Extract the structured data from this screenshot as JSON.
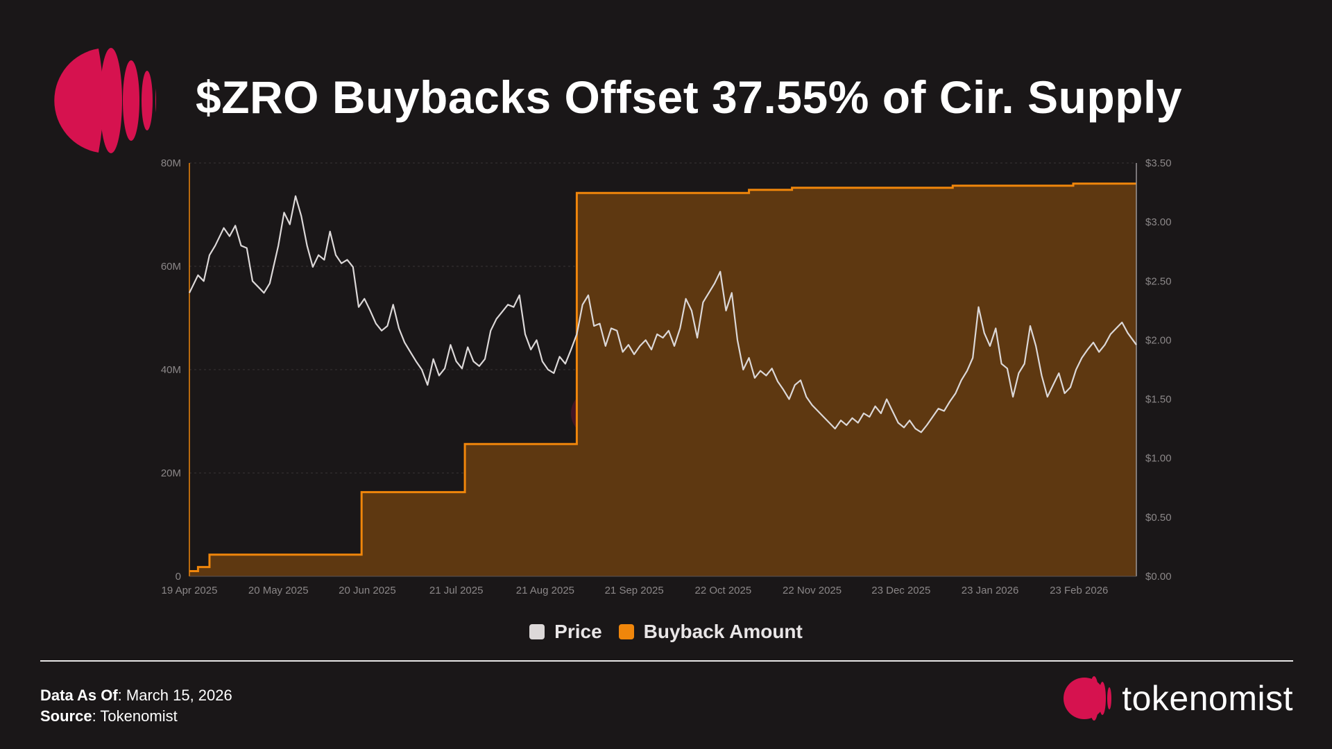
{
  "header": {
    "title": "$ZRO Buybacks Offset 37.55% of Cir. Supply"
  },
  "colors": {
    "background": "#1a1718",
    "brand": "#d6124f",
    "price_line": "#dcd8d8",
    "buyback_line": "#f0860b",
    "buyback_fill": "#5e3811"
  },
  "chart_data": {
    "type": "line",
    "title": "$ZRO Buybacks Offset 37.55% of Cir. Supply",
    "x_axis": {
      "start": "2025-04-19",
      "end": "2026-03-15",
      "tick_labels": [
        "19 Apr 2025",
        "20 May 2025",
        "20 Jun 2025",
        "21 Jul 2025",
        "21 Aug 2025",
        "21 Sep 2025",
        "22 Oct 2025",
        "22 Nov 2025",
        "23 Dec 2025",
        "23 Jan 2026",
        "23 Feb 2026"
      ],
      "tick_dates": [
        "2025-04-19",
        "2025-05-20",
        "2025-06-20",
        "2025-07-21",
        "2025-08-21",
        "2025-09-21",
        "2025-10-22",
        "2025-11-22",
        "2025-12-23",
        "2026-01-23",
        "2026-02-23"
      ]
    },
    "y_left": {
      "min": 0,
      "max": 80000000,
      "tick_labels": [
        "0",
        "20M",
        "40M",
        "60M",
        "80M"
      ],
      "tick_values": [
        0,
        20000000,
        40000000,
        60000000,
        80000000
      ]
    },
    "y_right": {
      "min": 0,
      "max": 3.5,
      "tick_labels": [
        "$0.00",
        "$0.50",
        "$1.00",
        "$1.50",
        "$2.00",
        "$2.50",
        "$3.00",
        "$3.50"
      ],
      "tick_values": [
        0,
        0.5,
        1.0,
        1.5,
        2.0,
        2.5,
        3.0,
        3.5
      ]
    },
    "grid": true,
    "watermark": "tokenomist",
    "legend": {
      "placement": "bottom-center",
      "items": [
        "Price",
        "Buyback Amount"
      ]
    },
    "series": [
      {
        "name": "Price",
        "axis": "right",
        "style": "line",
        "points": [
          [
            "2025-04-19",
            2.4
          ],
          [
            "2025-04-22",
            2.55
          ],
          [
            "2025-04-24",
            2.5
          ],
          [
            "2025-04-26",
            2.72
          ],
          [
            "2025-04-28",
            2.8
          ],
          [
            "2025-05-01",
            2.95
          ],
          [
            "2025-05-03",
            2.88
          ],
          [
            "2025-05-05",
            2.97
          ],
          [
            "2025-05-07",
            2.8
          ],
          [
            "2025-05-09",
            2.78
          ],
          [
            "2025-05-11",
            2.5
          ],
          [
            "2025-05-13",
            2.45
          ],
          [
            "2025-05-15",
            2.4
          ],
          [
            "2025-05-17",
            2.48
          ],
          [
            "2025-05-20",
            2.8
          ],
          [
            "2025-05-22",
            3.08
          ],
          [
            "2025-05-24",
            2.98
          ],
          [
            "2025-05-26",
            3.22
          ],
          [
            "2025-05-28",
            3.05
          ],
          [
            "2025-05-30",
            2.8
          ],
          [
            "2025-06-01",
            2.62
          ],
          [
            "2025-06-03",
            2.72
          ],
          [
            "2025-06-05",
            2.68
          ],
          [
            "2025-06-07",
            2.92
          ],
          [
            "2025-06-09",
            2.72
          ],
          [
            "2025-06-11",
            2.65
          ],
          [
            "2025-06-13",
            2.68
          ],
          [
            "2025-06-15",
            2.62
          ],
          [
            "2025-06-17",
            2.28
          ],
          [
            "2025-06-19",
            2.35
          ],
          [
            "2025-06-21",
            2.25
          ],
          [
            "2025-06-23",
            2.14
          ],
          [
            "2025-06-25",
            2.08
          ],
          [
            "2025-06-27",
            2.12
          ],
          [
            "2025-06-29",
            2.3
          ],
          [
            "2025-07-01",
            2.1
          ],
          [
            "2025-07-03",
            1.98
          ],
          [
            "2025-07-05",
            1.9
          ],
          [
            "2025-07-07",
            1.82
          ],
          [
            "2025-07-09",
            1.75
          ],
          [
            "2025-07-11",
            1.62
          ],
          [
            "2025-07-13",
            1.84
          ],
          [
            "2025-07-15",
            1.7
          ],
          [
            "2025-07-17",
            1.76
          ],
          [
            "2025-07-19",
            1.96
          ],
          [
            "2025-07-21",
            1.82
          ],
          [
            "2025-07-23",
            1.76
          ],
          [
            "2025-07-25",
            1.94
          ],
          [
            "2025-07-27",
            1.82
          ],
          [
            "2025-07-29",
            1.78
          ],
          [
            "2025-07-31",
            1.84
          ],
          [
            "2025-08-02",
            2.08
          ],
          [
            "2025-08-04",
            2.18
          ],
          [
            "2025-08-06",
            2.24
          ],
          [
            "2025-08-08",
            2.3
          ],
          [
            "2025-08-10",
            2.28
          ],
          [
            "2025-08-12",
            2.38
          ],
          [
            "2025-08-14",
            2.05
          ],
          [
            "2025-08-16",
            1.92
          ],
          [
            "2025-08-18",
            2.0
          ],
          [
            "2025-08-20",
            1.82
          ],
          [
            "2025-08-22",
            1.75
          ],
          [
            "2025-08-24",
            1.72
          ],
          [
            "2025-08-26",
            1.86
          ],
          [
            "2025-08-28",
            1.8
          ],
          [
            "2025-08-30",
            1.92
          ],
          [
            "2025-09-01",
            2.05
          ],
          [
            "2025-09-03",
            2.3
          ],
          [
            "2025-09-05",
            2.38
          ],
          [
            "2025-09-07",
            2.12
          ],
          [
            "2025-09-09",
            2.14
          ],
          [
            "2025-09-11",
            1.95
          ],
          [
            "2025-09-13",
            2.1
          ],
          [
            "2025-09-15",
            2.08
          ],
          [
            "2025-09-17",
            1.9
          ],
          [
            "2025-09-19",
            1.96
          ],
          [
            "2025-09-21",
            1.88
          ],
          [
            "2025-09-23",
            1.95
          ],
          [
            "2025-09-25",
            2.0
          ],
          [
            "2025-09-27",
            1.92
          ],
          [
            "2025-09-29",
            2.05
          ],
          [
            "2025-10-01",
            2.02
          ],
          [
            "2025-10-03",
            2.08
          ],
          [
            "2025-10-05",
            1.95
          ],
          [
            "2025-10-07",
            2.1
          ],
          [
            "2025-10-09",
            2.35
          ],
          [
            "2025-10-11",
            2.25
          ],
          [
            "2025-10-13",
            2.02
          ],
          [
            "2025-10-15",
            2.32
          ],
          [
            "2025-10-17",
            2.4
          ],
          [
            "2025-10-19",
            2.48
          ],
          [
            "2025-10-21",
            2.58
          ],
          [
            "2025-10-23",
            2.25
          ],
          [
            "2025-10-25",
            2.4
          ],
          [
            "2025-10-27",
            2.0
          ],
          [
            "2025-10-29",
            1.75
          ],
          [
            "2025-10-31",
            1.85
          ],
          [
            "2025-11-02",
            1.68
          ],
          [
            "2025-11-04",
            1.74
          ],
          [
            "2025-11-06",
            1.7
          ],
          [
            "2025-11-08",
            1.76
          ],
          [
            "2025-11-10",
            1.65
          ],
          [
            "2025-11-12",
            1.58
          ],
          [
            "2025-11-14",
            1.5
          ],
          [
            "2025-11-16",
            1.62
          ],
          [
            "2025-11-18",
            1.66
          ],
          [
            "2025-11-20",
            1.52
          ],
          [
            "2025-11-22",
            1.45
          ],
          [
            "2025-11-24",
            1.4
          ],
          [
            "2025-11-26",
            1.35
          ],
          [
            "2025-11-28",
            1.3
          ],
          [
            "2025-11-30",
            1.25
          ],
          [
            "2025-12-02",
            1.32
          ],
          [
            "2025-12-04",
            1.28
          ],
          [
            "2025-12-06",
            1.34
          ],
          [
            "2025-12-08",
            1.3
          ],
          [
            "2025-12-10",
            1.38
          ],
          [
            "2025-12-12",
            1.35
          ],
          [
            "2025-12-14",
            1.44
          ],
          [
            "2025-12-16",
            1.38
          ],
          [
            "2025-12-18",
            1.5
          ],
          [
            "2025-12-20",
            1.4
          ],
          [
            "2025-12-22",
            1.3
          ],
          [
            "2025-12-24",
            1.26
          ],
          [
            "2025-12-26",
            1.32
          ],
          [
            "2025-12-28",
            1.25
          ],
          [
            "2025-12-30",
            1.22
          ],
          [
            "2026-01-01",
            1.28
          ],
          [
            "2026-01-03",
            1.35
          ],
          [
            "2026-01-05",
            1.42
          ],
          [
            "2026-01-07",
            1.4
          ],
          [
            "2026-01-09",
            1.48
          ],
          [
            "2026-01-11",
            1.55
          ],
          [
            "2026-01-13",
            1.66
          ],
          [
            "2026-01-15",
            1.74
          ],
          [
            "2026-01-17",
            1.85
          ],
          [
            "2026-01-19",
            2.28
          ],
          [
            "2026-01-21",
            2.06
          ],
          [
            "2026-01-23",
            1.95
          ],
          [
            "2026-01-25",
            2.1
          ],
          [
            "2026-01-27",
            1.8
          ],
          [
            "2026-01-29",
            1.76
          ],
          [
            "2026-01-31",
            1.52
          ],
          [
            "2026-02-02",
            1.72
          ],
          [
            "2026-02-04",
            1.8
          ],
          [
            "2026-02-06",
            2.12
          ],
          [
            "2026-02-08",
            1.95
          ],
          [
            "2026-02-10",
            1.7
          ],
          [
            "2026-02-12",
            1.52
          ],
          [
            "2026-02-14",
            1.62
          ],
          [
            "2026-02-16",
            1.72
          ],
          [
            "2026-02-18",
            1.55
          ],
          [
            "2026-02-20",
            1.6
          ],
          [
            "2026-02-22",
            1.75
          ],
          [
            "2026-02-24",
            1.85
          ],
          [
            "2026-02-26",
            1.92
          ],
          [
            "2026-02-28",
            1.98
          ],
          [
            "2026-03-02",
            1.9
          ],
          [
            "2026-03-04",
            1.96
          ],
          [
            "2026-03-06",
            2.05
          ],
          [
            "2026-03-08",
            2.1
          ],
          [
            "2026-03-10",
            2.15
          ],
          [
            "2026-03-12",
            2.06
          ],
          [
            "2026-03-15",
            1.96
          ]
        ]
      },
      {
        "name": "Buyback Amount",
        "axis": "left",
        "style": "step-area",
        "points": [
          [
            "2025-04-19",
            1000000
          ],
          [
            "2025-04-22",
            1800000
          ],
          [
            "2025-04-26",
            4200000
          ],
          [
            "2025-06-18",
            16300000
          ],
          [
            "2025-07-24",
            25600000
          ],
          [
            "2025-09-01",
            74200000
          ],
          [
            "2025-10-31",
            74800000
          ],
          [
            "2025-11-15",
            75200000
          ],
          [
            "2026-01-10",
            75600000
          ],
          [
            "2026-02-21",
            76000000
          ],
          [
            "2026-03-15",
            76000000
          ]
        ]
      }
    ]
  },
  "footer": {
    "data_as_of_label": "Data As Of",
    "data_as_of_value": ": March 15, 2026",
    "source_label": "Source",
    "source_value": ": Tokenomist",
    "brand_name": "tokenomist"
  }
}
